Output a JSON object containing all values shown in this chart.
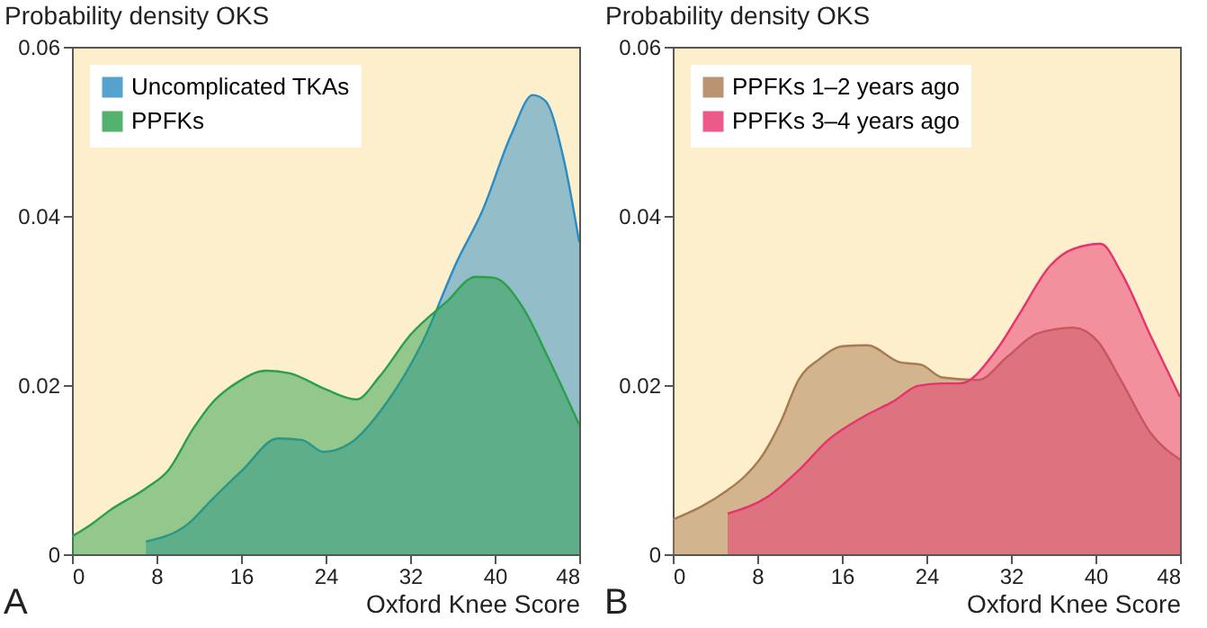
{
  "chart_data": [
    {
      "type": "area",
      "ylabel": "Probability density OKS",
      "xlabel": "Oxford Knee Score",
      "annotations": [
        "A"
      ],
      "xlim": [
        0,
        48
      ],
      "xticks": [
        0,
        8,
        16,
        24,
        32,
        40,
        48
      ],
      "ylim": [
        0,
        0.06
      ],
      "yticks": [
        0,
        0.02,
        0.04,
        0.06
      ],
      "grid": false,
      "legend": "top left",
      "series": [
        {
          "name": "Uncomplicated TKAs",
          "color": "#2a8cc4",
          "x": [
            7,
            11,
            13.2,
            16.1,
            19.5,
            21.8,
            23.8,
            26.3,
            29.7,
            33.1,
            36.5,
            38.8,
            41.6,
            43.6,
            44.8,
            46.5,
            48
          ],
          "values": [
            0.0015,
            0.0036,
            0.0064,
            0.0099,
            0.0137,
            0.0135,
            0.0121,
            0.0131,
            0.0178,
            0.0249,
            0.0348,
            0.0405,
            0.0497,
            0.0543,
            0.0536,
            0.0469,
            0.0369
          ]
        },
        {
          "name": "PPFKs",
          "color": "#2aa04a",
          "x": [
            0,
            1.9,
            3.6,
            7,
            9.1,
            11.5,
            13.2,
            15.5,
            18.4,
            20.6,
            24,
            26.9,
            29.1,
            32,
            35.4,
            38.2,
            39.9,
            42.7,
            45,
            48
          ],
          "values": [
            0.0021,
            0.0036,
            0.0052,
            0.0078,
            0.0099,
            0.0149,
            0.0178,
            0.0202,
            0.0217,
            0.0214,
            0.0195,
            0.0183,
            0.021,
            0.0259,
            0.0298,
            0.0328,
            0.0327,
            0.0291,
            0.0234,
            0.0153
          ]
        }
      ]
    },
    {
      "type": "area",
      "ylabel": "Probability density OKS",
      "xlabel": "Oxford Knee Score",
      "annotations": [
        "B"
      ],
      "xlim": [
        0,
        48
      ],
      "xticks": [
        0,
        8,
        16,
        24,
        32,
        40,
        48
      ],
      "ylim": [
        0,
        0.06
      ],
      "yticks": [
        0,
        0.02,
        0.04,
        0.06
      ],
      "grid": false,
      "legend": "top left",
      "series": [
        {
          "name": "PPFKs 1–2 years ago",
          "color": "#a87a52",
          "x": [
            0,
            2.8,
            5.1,
            6.8,
            8.5,
            10.2,
            11.9,
            13.9,
            16.1,
            18.4,
            21.5,
            23.5,
            25.5,
            28.9,
            31.7,
            34.5,
            37.9,
            40.2,
            42.4,
            45.3,
            48
          ],
          "values": [
            0.0041,
            0.0057,
            0.0075,
            0.0092,
            0.0117,
            0.0156,
            0.0206,
            0.0231,
            0.0246,
            0.0247,
            0.0227,
            0.0224,
            0.0209,
            0.0206,
            0.0234,
            0.0261,
            0.0268,
            0.0252,
            0.0206,
            0.0142,
            0.0112
          ]
        },
        {
          "name": "PPFKs 3–4 years ago",
          "color": "#e8316e",
          "x": [
            5.2,
            9.1,
            11.9,
            14.7,
            18.1,
            20.9,
            23.2,
            25.5,
            27.2,
            30.6,
            32.8,
            35.7,
            37.9,
            40.5,
            42.4,
            45.3,
            48
          ],
          "values": [
            0.0048,
            0.0069,
            0.0099,
            0.0135,
            0.0163,
            0.0181,
            0.0199,
            0.0202,
            0.0202,
            0.0241,
            0.0284,
            0.0341,
            0.0361,
            0.0367,
            0.0334,
            0.0256,
            0.0186
          ]
        }
      ]
    }
  ]
}
